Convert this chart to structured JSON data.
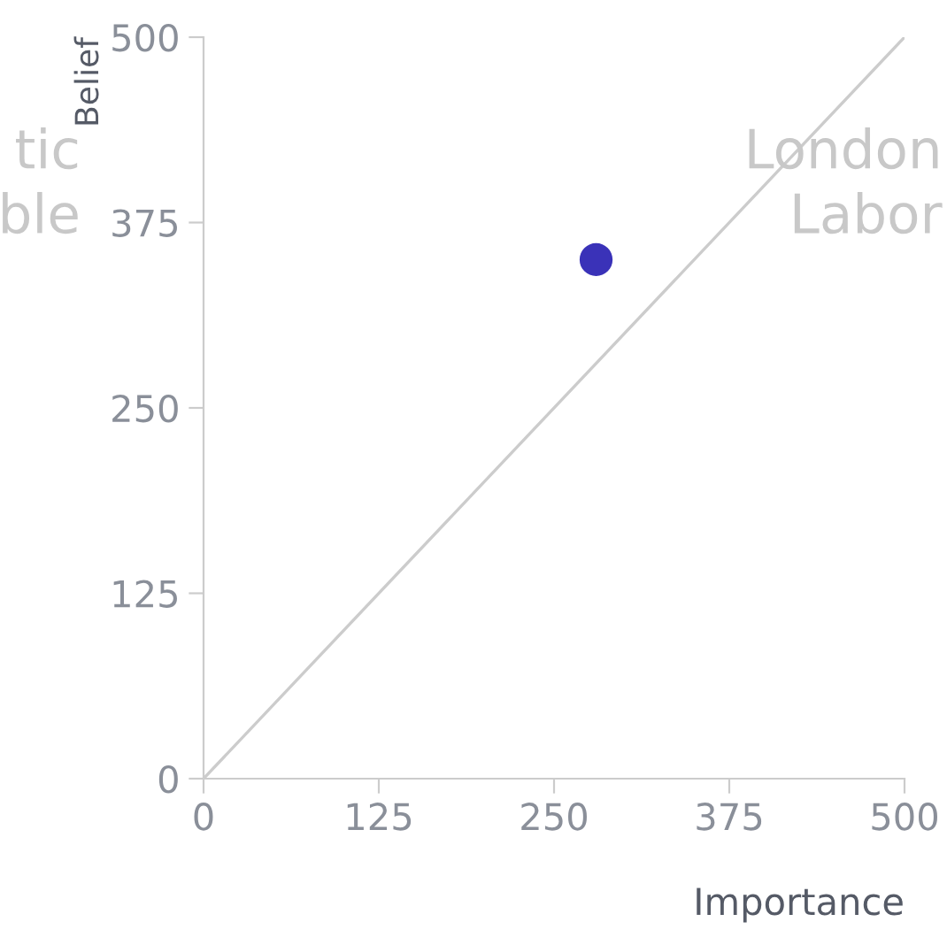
{
  "chart_data": {
    "type": "scatter",
    "xlabel": "Importance",
    "ylabel": "Belief",
    "xlim": [
      0,
      500
    ],
    "ylim": [
      0,
      500
    ],
    "xticks": [
      0,
      125,
      250,
      375,
      500
    ],
    "yticks": [
      0,
      125,
      250,
      375,
      500
    ],
    "grid": false,
    "annotations": [
      "tic\nble",
      "London\nLabor"
    ],
    "series": [
      {
        "color": "#3a32b8",
        "marker": "circle",
        "x": [
          280
        ],
        "values": [
          350
        ]
      },
      {
        "type": "line",
        "color": "#cccccc",
        "x": [
          0,
          500
        ],
        "values": [
          0,
          500
        ]
      }
    ]
  }
}
